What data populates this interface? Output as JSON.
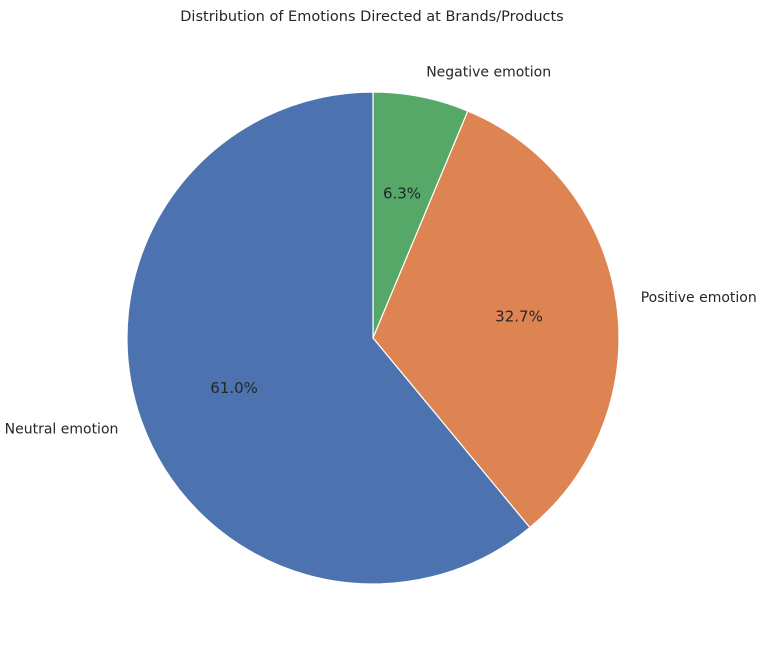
{
  "chart_data": {
    "type": "pie",
    "title": "Distribution of Emotions Directed at Brands/Products",
    "start_angle_deg": 90,
    "direction": "clockwise",
    "slices": [
      {
        "label": "Negative emotion",
        "value": 6.3,
        "pct_label": "6.3%",
        "color": "#55a868"
      },
      {
        "label": "Positive emotion",
        "value": 32.7,
        "pct_label": "32.7%",
        "color": "#dd8452"
      },
      {
        "label": "Neutral emotion",
        "value": 61.0,
        "pct_label": "61.0%",
        "color": "#4c72b0"
      }
    ],
    "wedge_edge_color": "#ffffff",
    "legend": "none"
  }
}
